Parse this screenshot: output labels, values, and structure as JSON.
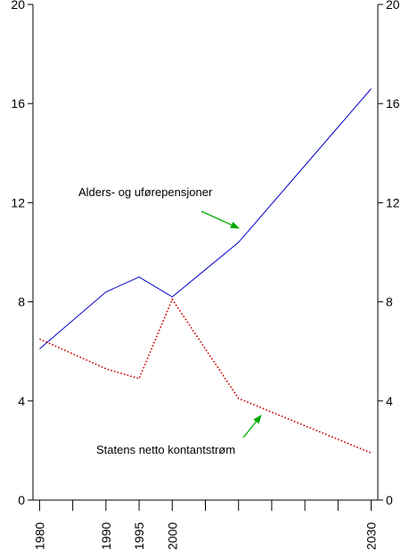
{
  "chart_data": {
    "type": "line",
    "title": "",
    "xlabel": "",
    "ylabel": "",
    "xlim": [
      1979,
      2031
    ],
    "ylim": [
      0,
      20
    ],
    "x_ticks": [
      1980,
      1985,
      1990,
      1995,
      2000,
      2005,
      2010,
      2015,
      2020,
      2025,
      2030
    ],
    "x_tick_labels": [
      {
        "x": 1980,
        "label": "1980"
      },
      {
        "x": 1990,
        "label": "1990"
      },
      {
        "x": 1995,
        "label": "1995"
      },
      {
        "x": 2000,
        "label": "2000"
      },
      {
        "x": 2030,
        "label": "2030"
      }
    ],
    "y_ticks": [
      0,
      4,
      8,
      12,
      16,
      20
    ],
    "y_tick_labels": [
      "0",
      "4",
      "8",
      "12",
      "16",
      "20"
    ],
    "grid": false,
    "legend": "none",
    "series": [
      {
        "key": "pension",
        "color": "#0000cc",
        "line_style": "solid",
        "x": [
          1980,
          1990,
          1995,
          2000,
          2010,
          2030
        ],
        "y": [
          6.1,
          8.4,
          9.0,
          8.2,
          10.4,
          16.6
        ]
      },
      {
        "key": "cashflow",
        "color": "#cc0000",
        "line_style": "dotted",
        "x": [
          1980,
          1990,
          1995,
          2000,
          2010,
          2030
        ],
        "y": [
          6.5,
          5.3,
          4.9,
          8.1,
          4.1,
          1.9
        ]
      }
    ],
    "annotations": [
      {
        "text": "Alders- og uførepensjoner",
        "series": "pension",
        "arrow_color": "#00aa00"
      },
      {
        "text": "Statens netto kontantstrøm",
        "series": "cashflow",
        "arrow_color": "#00aa00"
      }
    ]
  }
}
